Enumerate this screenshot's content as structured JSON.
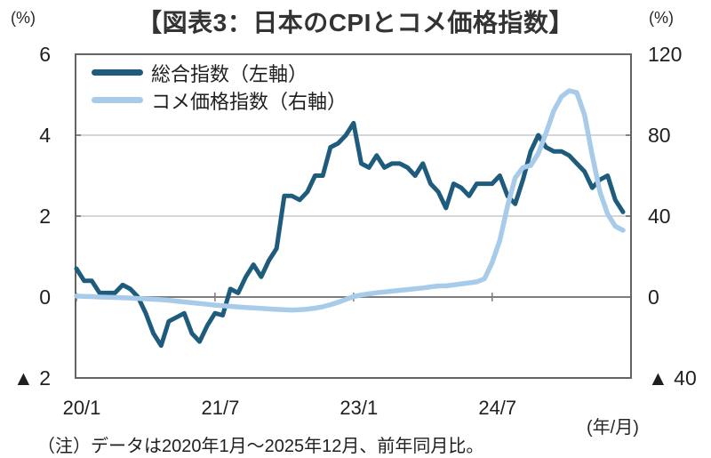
{
  "header": {
    "title": "【図表3：日本のCPIとコメ価格指数】",
    "left_axis_unit": "(%)",
    "right_axis_unit": "(%)"
  },
  "legend": [
    {
      "label": "総合指数（左軸）"
    },
    {
      "label": "コメ価格指数（右軸）"
    }
  ],
  "footer": {
    "x_axis_unit": "(年/月)",
    "note": "（注）データは2020年1月～2025年12月、前年同月比。"
  },
  "colors": {
    "cpi_line": "#1e5b7d",
    "rice_line": "#a9cbea",
    "grid": "#c9c9c9",
    "axis_border": "#646464",
    "zero_line": "#7d7d7d",
    "tick_text": "#1f1f1f"
  },
  "chart_data": {
    "type": "line",
    "title": "【図表3：日本のCPIとコメ価格指数】",
    "note": "（注）データは2020年1月～2025年12月、前年同月比。",
    "grid": "horizontal",
    "legend_position": "top-left-inside",
    "x": [
      "20/1",
      "20/2",
      "20/3",
      "20/4",
      "20/5",
      "20/6",
      "20/7",
      "20/8",
      "20/9",
      "20/10",
      "20/11",
      "20/12",
      "21/1",
      "21/2",
      "21/3",
      "21/4",
      "21/5",
      "21/6",
      "21/7",
      "21/8",
      "21/9",
      "21/10",
      "21/11",
      "21/12",
      "22/1",
      "22/2",
      "22/3",
      "22/4",
      "22/5",
      "22/6",
      "22/7",
      "22/8",
      "22/9",
      "22/10",
      "22/11",
      "22/12",
      "23/1",
      "23/2",
      "23/3",
      "23/4",
      "23/5",
      "23/6",
      "23/7",
      "23/8",
      "23/9",
      "23/10",
      "23/11",
      "23/12",
      "24/1",
      "24/2",
      "24/3",
      "24/4",
      "24/5",
      "24/6",
      "24/7",
      "24/8",
      "24/9",
      "24/10",
      "24/11",
      "24/12",
      "25/1",
      "25/2",
      "25/3",
      "25/4",
      "25/5",
      "25/6",
      "25/7",
      "25/8",
      "25/9",
      "25/10",
      "25/11",
      "25/12"
    ],
    "x_tick_labels": [
      "20/1",
      "21/7",
      "23/1",
      "24/7"
    ],
    "x_tick_indices": [
      0,
      18,
      36,
      54
    ],
    "x_axis_unit": "(年/月)",
    "left_axis": {
      "unit": "(%)",
      "min": -2,
      "max": 6,
      "tick_values": [
        6,
        4,
        2,
        0,
        -2
      ],
      "tick_labels": [
        "6",
        "4",
        "2",
        "0",
        "▲ 2"
      ]
    },
    "right_axis": {
      "unit": "(%)",
      "min": -40,
      "max": 120,
      "tick_values": [
        120,
        80,
        40,
        0,
        -40
      ],
      "tick_labels": [
        "120",
        "80",
        "40",
        "0",
        "▲ 40"
      ]
    },
    "series": [
      {
        "name": "総合指数（左軸）",
        "axis": "left",
        "color": "#1e5b7d",
        "values": [
          0.7,
          0.4,
          0.4,
          0.1,
          0.1,
          0.1,
          0.3,
          0.2,
          0.0,
          -0.4,
          -0.9,
          -1.2,
          -0.6,
          -0.5,
          -0.4,
          -0.9,
          -1.1,
          -0.7,
          -0.4,
          -0.45,
          0.2,
          0.1,
          0.5,
          0.8,
          0.5,
          0.9,
          1.2,
          2.5,
          2.5,
          2.4,
          2.6,
          3.0,
          3.0,
          3.7,
          3.8,
          4.0,
          4.3,
          3.3,
          3.2,
          3.5,
          3.2,
          3.3,
          3.3,
          3.2,
          3.0,
          3.3,
          2.8,
          2.6,
          2.2,
          2.8,
          2.7,
          2.5,
          2.8,
          2.8,
          2.8,
          3.0,
          2.5,
          2.3,
          2.9,
          3.6,
          4.0,
          3.7,
          3.6,
          3.6,
          3.5,
          3.3,
          3.1,
          2.7,
          2.9,
          3.0,
          2.4,
          2.1
        ]
      },
      {
        "name": "コメ価格指数（右軸）",
        "axis": "right",
        "color": "#a9cbea",
        "values": [
          0.5,
          0.3,
          0.2,
          0.0,
          -0.1,
          -0.2,
          -0.3,
          -0.5,
          -0.7,
          -0.9,
          -1.1,
          -1.3,
          -1.6,
          -2.0,
          -2.4,
          -2.8,
          -3.2,
          -3.6,
          -4.0,
          -4.3,
          -4.6,
          -4.9,
          -5.2,
          -5.4,
          -5.6,
          -5.9,
          -6.1,
          -6.3,
          -6.4,
          -6.3,
          -6.0,
          -5.5,
          -4.8,
          -3.8,
          -2.6,
          -1.2,
          0.2,
          1.0,
          1.6,
          2.1,
          2.5,
          2.9,
          3.3,
          3.7,
          4.1,
          4.5,
          5.0,
          5.5,
          5.5,
          6.0,
          6.5,
          7.0,
          7.5,
          9.0,
          17.0,
          28.0,
          45.0,
          59.0,
          64.0,
          65.0,
          71.0,
          81.0,
          92.0,
          99.0,
          102.0,
          101.0,
          90.0,
          70.0,
          52.0,
          41.0,
          35.0,
          33.0
        ]
      }
    ]
  }
}
